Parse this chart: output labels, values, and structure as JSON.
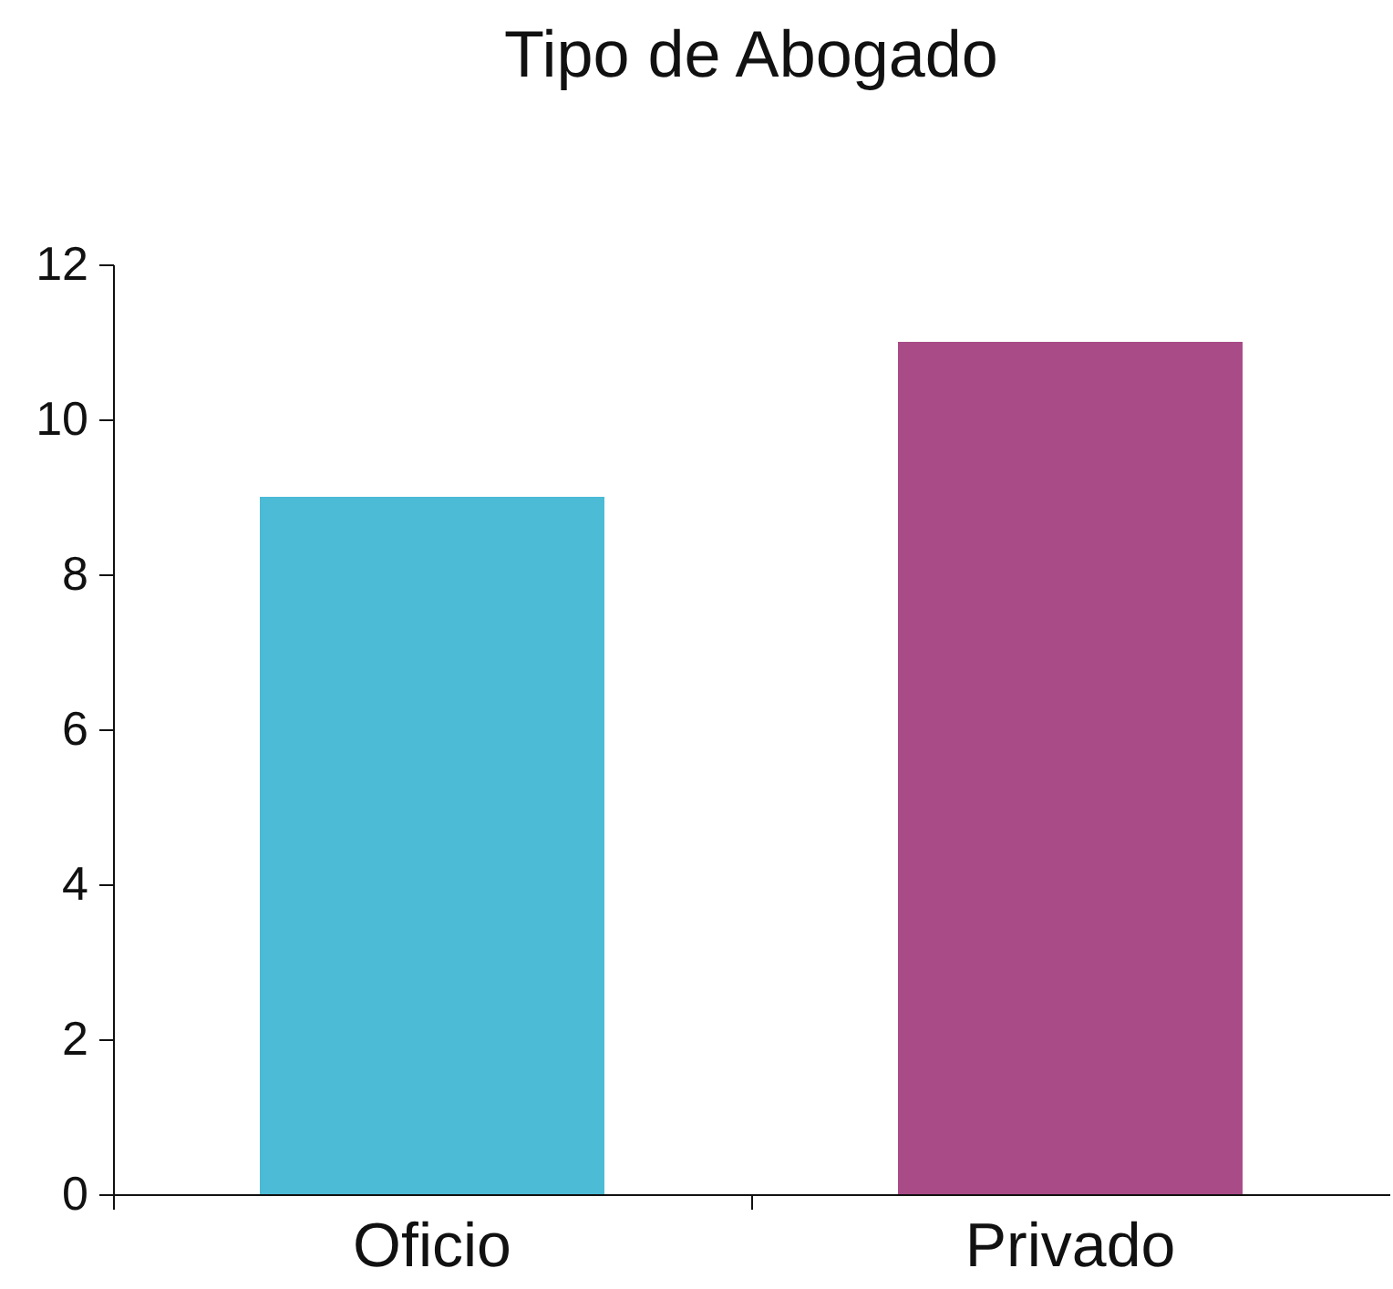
{
  "chart_data": {
    "type": "bar",
    "title": "Tipo de Abogado",
    "categories": [
      "Oficio",
      "Privado"
    ],
    "values": [
      9,
      11
    ],
    "colors": [
      "#4bbbd6",
      "#a84b87"
    ],
    "ylim": [
      0,
      12
    ],
    "yticks": [
      0,
      2,
      4,
      6,
      8,
      10,
      12
    ],
    "grid": false
  }
}
